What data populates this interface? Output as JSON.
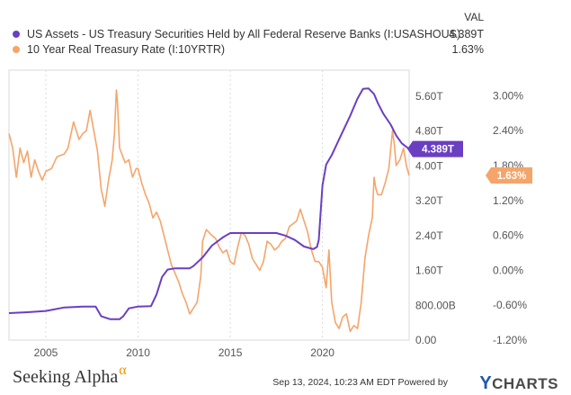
{
  "legend": {
    "header": "VAL",
    "items": [
      {
        "label": "US Assets - US Treasury Securities Held by All Federal Reserve Banks (I:USASHOUS)",
        "value": "4.389T",
        "color": "#6a3fc2"
      },
      {
        "label": "10 Year Real Treasury Rate (I:10YRTR)",
        "value": "1.63%",
        "color": "#f5a56a"
      }
    ]
  },
  "footer": {
    "logo_text": "Seeking Alpha",
    "logo_mark": "α",
    "timestamp": "Sep 13, 2024, 10:23 AM EDT Powered by",
    "brand": "CHARTS",
    "brand_mark": "Y"
  },
  "chart_data": {
    "type": "line",
    "x_ticks": [
      2005,
      2010,
      2015,
      2020
    ],
    "x_range": [
      2003.0,
      2024.7
    ],
    "grid": "vertical dashed at year ticks",
    "y_left": {
      "ticks": [
        "5.60T",
        "4.80T",
        "4.00T",
        "3.20T",
        "2.40T",
        "1.60T",
        "800.00B",
        "0.00"
      ],
      "range": [
        0,
        6.2
      ],
      "unit": "T"
    },
    "y_right": {
      "ticks": [
        "3.00%",
        "2.40%",
        "1.80%",
        "1.20%",
        "0.60%",
        "0.00%",
        "-0.60%",
        "-1.20%"
      ],
      "range": [
        -1.2,
        3.44
      ],
      "unit": "%"
    },
    "series": [
      {
        "name": "US Assets - US Treasury Securities Held by All Federal Reserve Banks (I:USASHOUS)",
        "axis": "left",
        "color": "#6a3fc2",
        "end_label": "4.389T",
        "points": [
          [
            2003.0,
            0.62
          ],
          [
            2004.0,
            0.64
          ],
          [
            2005.0,
            0.67
          ],
          [
            2006.0,
            0.75
          ],
          [
            2007.0,
            0.77
          ],
          [
            2007.7,
            0.77
          ],
          [
            2008.0,
            0.55
          ],
          [
            2008.5,
            0.48
          ],
          [
            2009.0,
            0.48
          ],
          [
            2009.2,
            0.55
          ],
          [
            2009.5,
            0.73
          ],
          [
            2010.0,
            0.77
          ],
          [
            2010.7,
            0.78
          ],
          [
            2011.0,
            1.05
          ],
          [
            2011.3,
            1.45
          ],
          [
            2011.6,
            1.62
          ],
          [
            2012.0,
            1.65
          ],
          [
            2012.8,
            1.65
          ],
          [
            2013.0,
            1.7
          ],
          [
            2013.5,
            1.9
          ],
          [
            2014.0,
            2.17
          ],
          [
            2014.6,
            2.36
          ],
          [
            2015.0,
            2.46
          ],
          [
            2016.0,
            2.46
          ],
          [
            2017.0,
            2.46
          ],
          [
            2017.5,
            2.46
          ],
          [
            2018.0,
            2.4
          ],
          [
            2018.5,
            2.3
          ],
          [
            2019.0,
            2.15
          ],
          [
            2019.5,
            2.09
          ],
          [
            2019.7,
            2.14
          ],
          [
            2019.8,
            2.3
          ],
          [
            2020.0,
            3.55
          ],
          [
            2020.2,
            4.03
          ],
          [
            2020.5,
            4.25
          ],
          [
            2021.0,
            4.7
          ],
          [
            2021.5,
            5.15
          ],
          [
            2021.9,
            5.55
          ],
          [
            2022.2,
            5.77
          ],
          [
            2022.5,
            5.78
          ],
          [
            2022.8,
            5.65
          ],
          [
            2023.0,
            5.45
          ],
          [
            2023.3,
            5.2
          ],
          [
            2023.7,
            4.95
          ],
          [
            2024.0,
            4.7
          ],
          [
            2024.3,
            4.52
          ],
          [
            2024.7,
            4.389
          ]
        ]
      },
      {
        "name": "10 Year Real Treasury Rate (I:10YRTR)",
        "axis": "right",
        "color": "#f5a56a",
        "end_label": "1.63%",
        "points": [
          [
            2003.0,
            2.35
          ],
          [
            2003.2,
            2.1
          ],
          [
            2003.4,
            1.6
          ],
          [
            2003.6,
            2.1
          ],
          [
            2003.8,
            1.85
          ],
          [
            2004.0,
            2.05
          ],
          [
            2004.2,
            1.6
          ],
          [
            2004.4,
            1.9
          ],
          [
            2004.6,
            1.7
          ],
          [
            2004.8,
            1.55
          ],
          [
            2005.0,
            1.7
          ],
          [
            2005.3,
            1.75
          ],
          [
            2005.6,
            1.95
          ],
          [
            2006.0,
            2.0
          ],
          [
            2006.2,
            2.1
          ],
          [
            2006.5,
            2.55
          ],
          [
            2006.8,
            2.25
          ],
          [
            2007.0,
            2.35
          ],
          [
            2007.2,
            2.4
          ],
          [
            2007.4,
            2.75
          ],
          [
            2007.6,
            2.4
          ],
          [
            2007.8,
            2.05
          ],
          [
            2008.0,
            1.4
          ],
          [
            2008.2,
            1.1
          ],
          [
            2008.4,
            1.55
          ],
          [
            2008.6,
            1.9
          ],
          [
            2008.72,
            2.35
          ],
          [
            2008.82,
            3.1
          ],
          [
            2008.88,
            2.9
          ],
          [
            2009.0,
            2.1
          ],
          [
            2009.3,
            1.85
          ],
          [
            2009.5,
            1.9
          ],
          [
            2009.7,
            1.6
          ],
          [
            2009.9,
            1.75
          ],
          [
            2010.0,
            1.75
          ],
          [
            2010.2,
            1.5
          ],
          [
            2010.4,
            1.3
          ],
          [
            2010.6,
            1.15
          ],
          [
            2010.8,
            0.9
          ],
          [
            2011.0,
            1.0
          ],
          [
            2011.2,
            0.85
          ],
          [
            2011.4,
            0.6
          ],
          [
            2011.6,
            0.35
          ],
          [
            2011.8,
            0.1
          ],
          [
            2012.0,
            -0.05
          ],
          [
            2012.2,
            -0.2
          ],
          [
            2012.4,
            -0.4
          ],
          [
            2012.6,
            -0.55
          ],
          [
            2012.8,
            -0.75
          ],
          [
            2013.0,
            -0.65
          ],
          [
            2013.2,
            -0.55
          ],
          [
            2013.4,
            -0.1
          ],
          [
            2013.5,
            0.5
          ],
          [
            2013.7,
            0.7
          ],
          [
            2014.0,
            0.6
          ],
          [
            2014.2,
            0.55
          ],
          [
            2014.4,
            0.4
          ],
          [
            2014.6,
            0.3
          ],
          [
            2014.8,
            0.35
          ],
          [
            2015.0,
            0.15
          ],
          [
            2015.2,
            0.1
          ],
          [
            2015.4,
            0.4
          ],
          [
            2015.6,
            0.65
          ],
          [
            2015.8,
            0.6
          ],
          [
            2016.0,
            0.45
          ],
          [
            2016.2,
            0.2
          ],
          [
            2016.4,
            0.1
          ],
          [
            2016.6,
            0.0
          ],
          [
            2016.8,
            0.15
          ],
          [
            2017.0,
            0.5
          ],
          [
            2017.2,
            0.45
          ],
          [
            2017.4,
            0.35
          ],
          [
            2017.6,
            0.4
          ],
          [
            2017.8,
            0.5
          ],
          [
            2018.0,
            0.55
          ],
          [
            2018.2,
            0.75
          ],
          [
            2018.4,
            0.8
          ],
          [
            2018.6,
            0.85
          ],
          [
            2018.8,
            1.05
          ],
          [
            2019.0,
            0.85
          ],
          [
            2019.2,
            0.65
          ],
          [
            2019.4,
            0.35
          ],
          [
            2019.6,
            0.15
          ],
          [
            2019.8,
            0.15
          ],
          [
            2020.0,
            0.05
          ],
          [
            2020.2,
            -0.3
          ],
          [
            2020.35,
            0.35
          ],
          [
            2020.5,
            -0.55
          ],
          [
            2020.7,
            -0.9
          ],
          [
            2020.9,
            -1.0
          ],
          [
            2021.1,
            -0.8
          ],
          [
            2021.3,
            -0.75
          ],
          [
            2021.5,
            -1.05
          ],
          [
            2021.7,
            -0.95
          ],
          [
            2021.9,
            -1.0
          ],
          [
            2022.1,
            -0.55
          ],
          [
            2022.3,
            0.2
          ],
          [
            2022.5,
            0.6
          ],
          [
            2022.7,
            0.9
          ],
          [
            2022.8,
            1.6
          ],
          [
            2022.9,
            1.4
          ],
          [
            2023.0,
            1.3
          ],
          [
            2023.2,
            1.3
          ],
          [
            2023.4,
            1.5
          ],
          [
            2023.6,
            1.75
          ],
          [
            2023.8,
            2.4
          ],
          [
            2023.9,
            2.15
          ],
          [
            2024.0,
            1.8
          ],
          [
            2024.2,
            1.9
          ],
          [
            2024.4,
            2.1
          ],
          [
            2024.55,
            1.8
          ],
          [
            2024.7,
            1.63
          ]
        ]
      }
    ]
  }
}
